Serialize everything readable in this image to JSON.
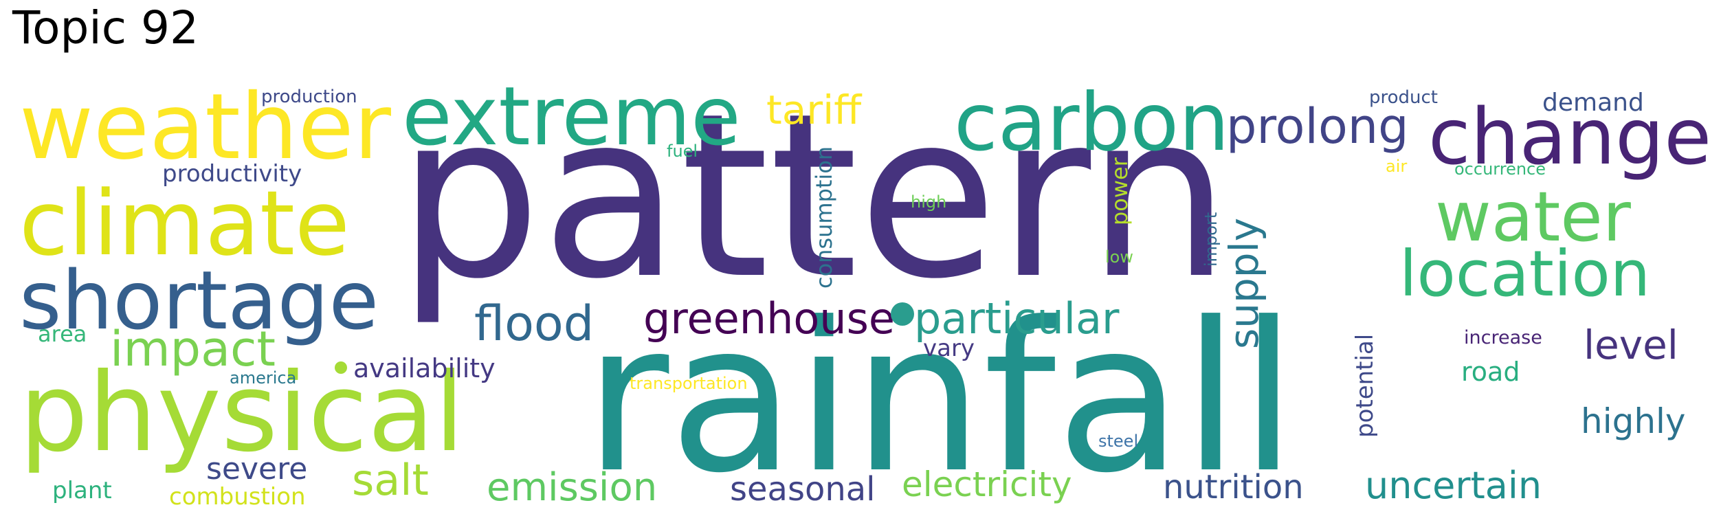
{
  "title": "Topic 92",
  "words": [
    {
      "text": "pattern",
      "color": "#46337e"
    },
    {
      "text": "rainfall",
      "color": "#21918c"
    },
    {
      "text": "physical",
      "color": "#a5db36"
    },
    {
      "text": "weather",
      "color": "#fde725"
    },
    {
      "text": "climate",
      "color": "#dfe318"
    },
    {
      "text": "shortage",
      "color": "#355f8d"
    },
    {
      "text": "extreme",
      "color": "#22a884"
    },
    {
      "text": "carbon",
      "color": "#20a386"
    },
    {
      "text": "change",
      "color": "#482475"
    },
    {
      "text": "water",
      "color": "#5ec962"
    },
    {
      "text": "location",
      "color": "#35b779"
    },
    {
      "text": "prolong",
      "color": "#414487"
    },
    {
      "text": "flood",
      "color": "#31688e"
    },
    {
      "text": "greenhouse",
      "color": "#440154"
    },
    {
      "text": "particular",
      "color": "#2a9d8e"
    },
    {
      "text": "impact",
      "color": "#7ad151"
    },
    {
      "text": "tariff",
      "color": "#fde725"
    },
    {
      "text": "supply",
      "color": "#2a788e"
    },
    {
      "text": "consumption",
      "color": "#2c728e"
    },
    {
      "text": "level",
      "color": "#46337e"
    },
    {
      "text": "highly",
      "color": "#2c728e"
    },
    {
      "text": "uncertain",
      "color": "#218f8d"
    },
    {
      "text": "nutrition",
      "color": "#3b528b"
    },
    {
      "text": "seasonal",
      "color": "#414487"
    },
    {
      "text": "electricity",
      "color": "#7ad151"
    },
    {
      "text": "emission",
      "color": "#5ec962"
    },
    {
      "text": "salt",
      "color": "#a5db36"
    },
    {
      "text": "severe",
      "color": "#3e4a89"
    },
    {
      "text": "availability",
      "color": "#443983"
    },
    {
      "text": "productivity",
      "color": "#3e4989"
    },
    {
      "text": "demand",
      "color": "#3b528b"
    },
    {
      "text": "road",
      "color": "#28ae80"
    },
    {
      "text": "potential",
      "color": "#3e4989"
    },
    {
      "text": "power",
      "color": "#b5de2b"
    },
    {
      "text": "vary",
      "color": "#443983"
    },
    {
      "text": "plant",
      "color": "#2db27d"
    },
    {
      "text": "combustion",
      "color": "#d2e21b"
    },
    {
      "text": "area",
      "color": "#35b779"
    },
    {
      "text": "america",
      "color": "#2a788e"
    },
    {
      "text": "production",
      "color": "#3e4989"
    },
    {
      "text": "product",
      "color": "#3b528b"
    },
    {
      "text": "occurrence",
      "color": "#35b779"
    },
    {
      "text": "increase",
      "color": "#482475"
    },
    {
      "text": "import",
      "color": "#31688e"
    },
    {
      "text": "low",
      "color": "#7ad151"
    },
    {
      "text": "high",
      "color": "#6ece58"
    },
    {
      "text": "fuel",
      "color": "#2db27d"
    },
    {
      "text": "air",
      "color": "#fde725"
    },
    {
      "text": "steel",
      "color": "#3e74a8"
    },
    {
      "text": "transportation",
      "color": "#fde725"
    }
  ]
}
